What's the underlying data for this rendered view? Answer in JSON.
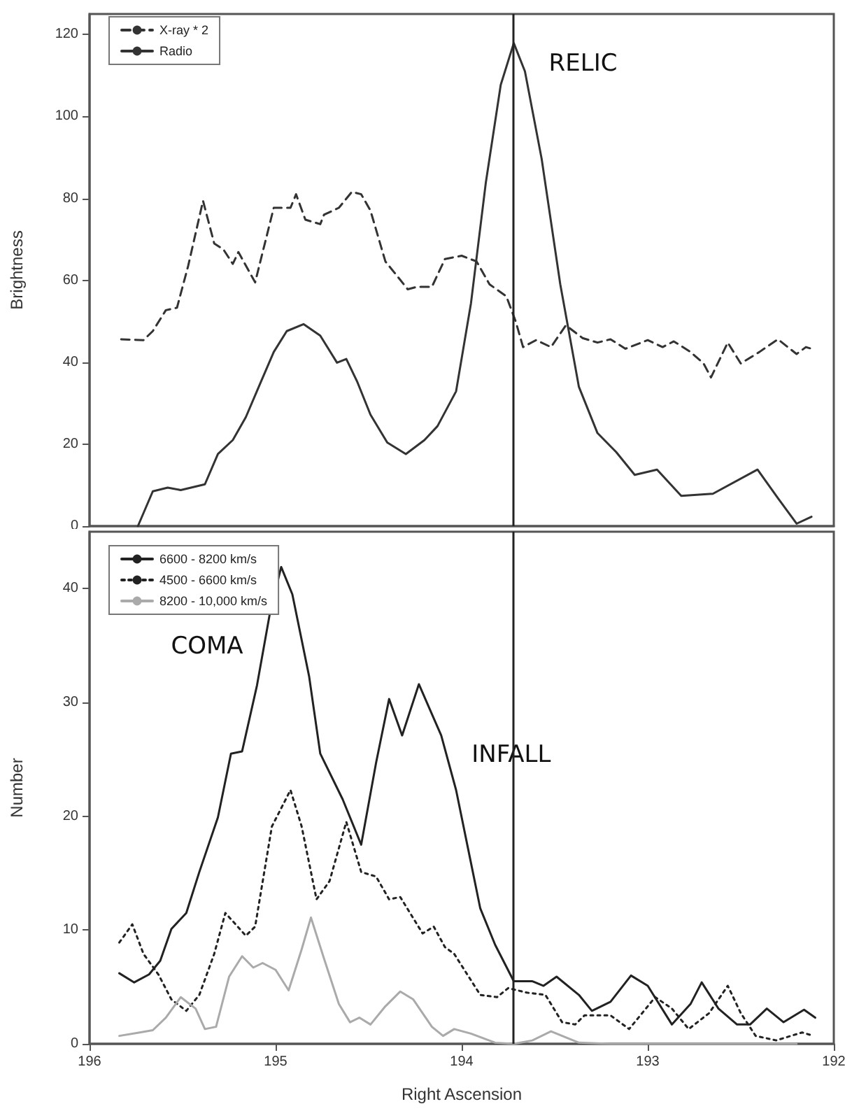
{
  "chart_data": [
    {
      "type": "line",
      "ylabel": "Brightness",
      "xlim": [
        196,
        192
      ],
      "ylim": [
        0,
        125
      ],
      "yticks": [
        0,
        20,
        40,
        60,
        80,
        100,
        120
      ],
      "tick_labels": "y",
      "grid": false,
      "legend": "top left",
      "marker": "none",
      "series": [
        {
          "name": "X-ray * 2",
          "color": "#333333",
          "line_style": "dashed",
          "x": [
            195.83,
            195.71,
            195.66,
            195.59,
            195.53,
            195.47,
            195.39,
            195.33,
            195.28,
            195.23,
            195.2,
            195.11,
            195.01,
            194.92,
            194.89,
            194.84,
            194.76,
            194.74,
            194.66,
            194.59,
            194.54,
            194.49,
            194.41,
            194.36,
            194.29,
            194.24,
            194.16,
            194.09,
            194.0,
            193.92,
            193.85,
            193.76,
            193.71,
            193.67,
            193.6,
            193.52,
            193.44,
            193.35,
            193.27,
            193.2,
            193.12,
            193.0,
            192.92,
            192.86,
            192.77,
            192.7,
            192.66,
            192.57,
            192.5,
            192.4,
            192.3,
            192.2,
            192.15,
            192.12
          ],
          "values": [
            45.6,
            45.4,
            47.6,
            52.7,
            53.3,
            63.5,
            79.4,
            69,
            67.5,
            64,
            66.9,
            59.5,
            77.7,
            77.7,
            81,
            74.8,
            73.7,
            76,
            77.7,
            81.6,
            81,
            77,
            64.6,
            61.8,
            57.8,
            58.4,
            58.4,
            65.2,
            66,
            64.6,
            59,
            56.1,
            50,
            43.7,
            45.4,
            43.7,
            49,
            45.9,
            44.8,
            45.6,
            43.3,
            45.4,
            43.7,
            45.1,
            42.5,
            39.7,
            36.3,
            44.8,
            39.7,
            42.5,
            45.6,
            42,
            43.7,
            43.3
          ]
        },
        {
          "name": "Radio",
          "color": "#333333",
          "line_style": "solid",
          "x": [
            195.74,
            195.66,
            195.58,
            195.51,
            195.38,
            195.31,
            195.23,
            195.16,
            195.08,
            195.01,
            194.94,
            194.85,
            194.76,
            194.67,
            194.62,
            194.56,
            194.49,
            194.4,
            194.3,
            194.2,
            194.13,
            194.03,
            193.95,
            193.87,
            193.79,
            193.72,
            193.66,
            193.57,
            193.47,
            193.37,
            193.27,
            193.17,
            193.07,
            192.95,
            192.82,
            192.65,
            192.41,
            192.3,
            192.2,
            192.12
          ],
          "values": [
            0,
            8.5,
            9.4,
            8.8,
            10.2,
            17.6,
            21,
            26.6,
            35.1,
            42.5,
            47.6,
            49.3,
            46.5,
            39.9,
            40.8,
            35.1,
            27.2,
            20.4,
            17.6,
            21,
            24.4,
            32.9,
            54.4,
            83.9,
            107.7,
            117.9,
            111,
            89.6,
            59,
            34,
            22.7,
            18.1,
            12.5,
            13.8,
            7.4,
            7.9,
            13.8,
            6.8,
            0.6,
            2.3
          ]
        }
      ],
      "ref_lines": [
        {
          "axis": "x",
          "value": 193.72,
          "color": "#222222"
        }
      ],
      "annotations": [
        "RELIC"
      ]
    },
    {
      "type": "line",
      "xlabel": "Right Ascension",
      "ylabel": "Number",
      "xlim": [
        196,
        192
      ],
      "xticks": [
        196,
        195,
        194,
        193,
        192
      ],
      "ylim": [
        0,
        45
      ],
      "yticks": [
        0,
        10,
        20,
        30,
        40
      ],
      "grid": false,
      "legend": "top left",
      "marker": "none",
      "series": [
        {
          "name": "6600 - 8200 km/s",
          "color": "#222222",
          "line_style": "solid",
          "x": [
            195.84,
            195.76,
            195.68,
            195.62,
            195.56,
            195.48,
            195.41,
            195.31,
            195.24,
            195.18,
            195.1,
            195.03,
            194.97,
            194.91,
            194.82,
            194.76,
            194.64,
            194.54,
            194.46,
            194.39,
            194.32,
            194.23,
            194.11,
            194.03,
            193.95,
            193.9,
            193.82,
            193.72,
            193.62,
            193.56,
            193.49,
            193.37,
            193.3,
            193.2,
            193.09,
            193.0,
            192.87,
            192.77,
            192.71,
            192.62,
            192.52,
            192.45,
            192.36,
            192.27,
            192.16,
            192.1
          ],
          "values": [
            6.2,
            5.4,
            6.1,
            7.3,
            10.1,
            11.5,
            15.1,
            19.9,
            25.5,
            25.7,
            31.5,
            37.9,
            41.9,
            39.5,
            32.3,
            25.5,
            21.5,
            17.5,
            24.7,
            30.3,
            27.1,
            31.6,
            27.1,
            22.3,
            15.9,
            11.9,
            8.7,
            5.5,
            5.5,
            5.1,
            5.9,
            4.3,
            2.9,
            3.7,
            6.0,
            5.1,
            1.7,
            3.5,
            5.4,
            3.1,
            1.7,
            1.7,
            3.1,
            1.9,
            3.0,
            2.3
          ]
        },
        {
          "name": "4500 - 6600 km/s",
          "color": "#222222",
          "line_style": "dotted",
          "x": [
            195.84,
            195.77,
            195.71,
            195.63,
            195.56,
            195.48,
            195.41,
            195.33,
            195.27,
            195.16,
            195.11,
            195.02,
            194.92,
            194.86,
            194.78,
            194.71,
            194.62,
            194.54,
            194.46,
            194.39,
            194.33,
            194.21,
            194.15,
            194.09,
            194.04,
            193.9,
            193.81,
            193.75,
            193.65,
            193.55,
            193.46,
            193.39,
            193.34,
            193.2,
            193.1,
            192.96,
            192.87,
            192.78,
            192.67,
            192.57,
            192.5,
            192.42,
            192.31,
            192.17,
            192.11
          ],
          "values": [
            8.9,
            10.5,
            7.9,
            6.1,
            3.9,
            2.9,
            4.3,
            7.9,
            11.5,
            9.5,
            10.3,
            19.1,
            22.3,
            19.1,
            12.7,
            14.3,
            19.5,
            15.1,
            14.7,
            12.7,
            12.9,
            9.7,
            10.3,
            8.5,
            7.9,
            4.3,
            4.1,
            4.9,
            4.5,
            4.3,
            1.9,
            1.7,
            2.5,
            2.5,
            1.3,
            4.1,
            3.1,
            1.3,
            2.7,
            5.1,
            2.7,
            0.7,
            0.3,
            1.0,
            0.7
          ]
        },
        {
          "name": "8200 - 10,000 km/s",
          "color": "#aaaaaa",
          "line_style": "solid",
          "x": [
            195.84,
            195.73,
            195.66,
            195.59,
            195.51,
            195.43,
            195.38,
            195.32,
            195.25,
            195.18,
            195.12,
            195.07,
            195.0,
            194.93,
            194.86,
            194.81,
            194.74,
            194.66,
            194.6,
            194.55,
            194.49,
            194.41,
            194.33,
            194.26,
            194.16,
            194.1,
            194.04,
            193.95,
            193.82,
            193.72,
            193.62,
            193.52,
            193.37,
            193.2,
            193.0,
            192.8,
            192.6,
            192.4,
            192.2
          ],
          "values": [
            0.7,
            1.0,
            1.2,
            2.3,
            4.1,
            3.1,
            1.3,
            1.5,
            5.9,
            7.7,
            6.7,
            7.1,
            6.5,
            4.7,
            8.3,
            11.1,
            7.5,
            3.5,
            1.9,
            2.3,
            1.7,
            3.3,
            4.6,
            3.9,
            1.5,
            0.7,
            1.3,
            0.9,
            0.1,
            0,
            0.3,
            1.1,
            0.1,
            0,
            0,
            0,
            0,
            0,
            0
          ]
        }
      ],
      "ref_lines": [
        {
          "axis": "x",
          "value": 193.72,
          "color": "#222222"
        }
      ],
      "annotations": [
        "COMA",
        "INFALL"
      ]
    }
  ]
}
